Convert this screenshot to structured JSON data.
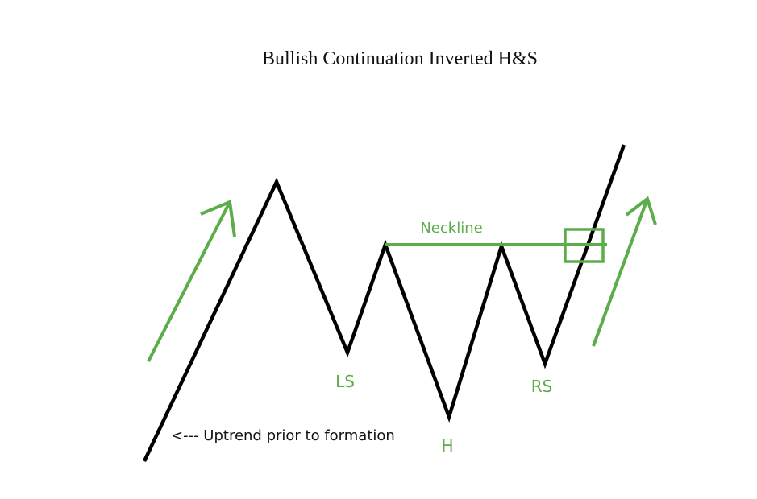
{
  "title": "Bullish Continuation Inverted H&S",
  "labels": {
    "neckline": "Neckline",
    "left_shoulder": "LS",
    "head": "H",
    "right_shoulder": "RS",
    "uptrend_note": "<--- Uptrend prior to formation"
  },
  "colors": {
    "price_line": "#000000",
    "accent": "#5cad4a",
    "text": "#111111"
  },
  "icons": {
    "trend_arrow": "arrow-up-right-icon",
    "breakout_marker": "square-outline-icon"
  }
}
